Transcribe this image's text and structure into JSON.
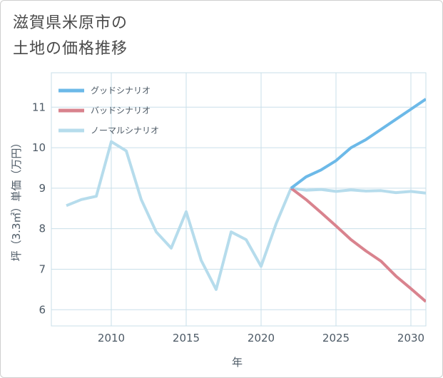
{
  "title_lines": [
    "滋賀県米原市の",
    "土地の価格推移"
  ],
  "colors": {
    "good": "#6cb9e8",
    "bad": "#d9838e",
    "normal": "#b6dcec",
    "grid": "#c9dfea",
    "text": "#4d5a66"
  },
  "chart_data": {
    "type": "line",
    "title": "滋賀県米原市の土地の価格推移",
    "xlabel": "年",
    "ylabel": "坪（3.3㎡）単価（万円）",
    "xlim": [
      2006,
      2031
    ],
    "ylim": [
      5.6,
      11.85
    ],
    "xticks": [
      2010,
      2015,
      2020,
      2025,
      2030
    ],
    "yticks": [
      6,
      7,
      8,
      9,
      10,
      11
    ],
    "legend_position": "top-left",
    "series": [
      {
        "name": "グッドシナリオ",
        "color_key": "good",
        "x": [
          2022,
          2023,
          2024,
          2025,
          2026,
          2027,
          2028,
          2029,
          2030,
          2031
        ],
        "y": [
          9.0,
          9.28,
          9.45,
          9.68,
          10.0,
          10.2,
          10.45,
          10.7,
          10.95,
          11.2
        ]
      },
      {
        "name": "バッドシナリオ",
        "color_key": "bad",
        "x": [
          2022,
          2023,
          2024,
          2025,
          2026,
          2027,
          2028,
          2029,
          2030,
          2031
        ],
        "y": [
          9.0,
          8.72,
          8.4,
          8.07,
          7.73,
          7.45,
          7.2,
          6.83,
          6.52,
          6.2
        ]
      },
      {
        "name": "ノーマルシナリオ",
        "color_key": "normal",
        "x": [
          2007,
          2008,
          2009,
          2010,
          2011,
          2012,
          2013,
          2014,
          2015,
          2016,
          2017,
          2018,
          2019,
          2020,
          2021,
          2022,
          2023,
          2024,
          2025,
          2026,
          2027,
          2028,
          2029,
          2030,
          2031
        ],
        "y": [
          8.57,
          8.72,
          8.8,
          10.15,
          9.92,
          8.72,
          7.92,
          7.52,
          8.42,
          7.22,
          6.5,
          7.92,
          7.73,
          7.07,
          8.12,
          9.0,
          8.95,
          8.97,
          8.92,
          8.96,
          8.93,
          8.94,
          8.89,
          8.92,
          8.88
        ]
      }
    ]
  }
}
